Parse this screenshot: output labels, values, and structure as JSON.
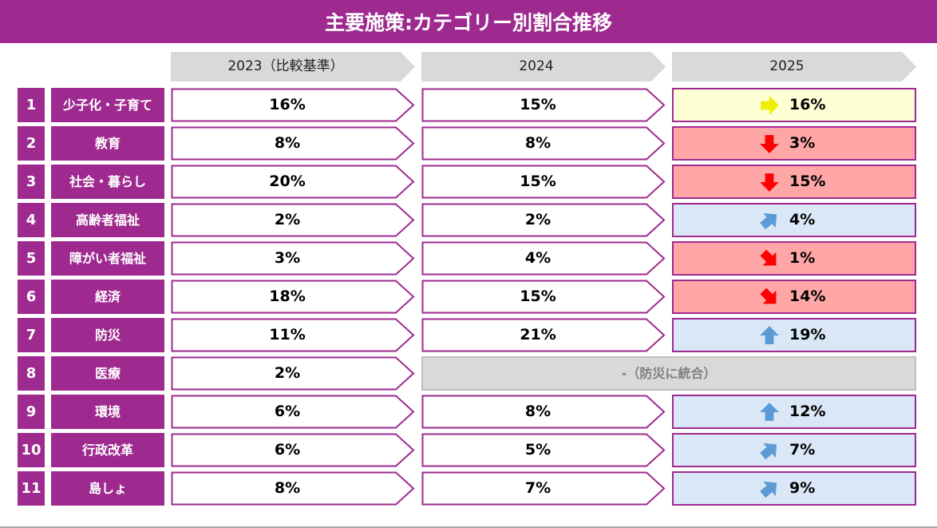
{
  "title": "主要施策:カテゴリー別割合推移",
  "headers": [
    "2023（比較基準）",
    "2024",
    "2025"
  ],
  "colors": {
    "brand": "#9e2a8f",
    "up_bg": "#dae7f6",
    "down_bg": "#ffa7a7",
    "flat_bg": "#ffffd5",
    "up_arrow": "#5b9bd5",
    "down_arrow": "#ff0000",
    "flat_arrow": "#eeee00"
  },
  "rows": [
    {
      "no": "1",
      "category": "少子化・子育て",
      "y2023": "16%",
      "y2024": "15%",
      "y2025": "16%",
      "trend": "flat"
    },
    {
      "no": "2",
      "category": "教育",
      "y2023": "8%",
      "y2024": "8%",
      "y2025": "3%",
      "trend": "down"
    },
    {
      "no": "3",
      "category": "社会・暮らし",
      "y2023": "20%",
      "y2024": "15%",
      "y2025": "15%",
      "trend": "down"
    },
    {
      "no": "4",
      "category": "高齢者福祉",
      "y2023": "2%",
      "y2024": "2%",
      "y2025": "4%",
      "trend": "up-right"
    },
    {
      "no": "5",
      "category": "障がい者福祉",
      "y2023": "3%",
      "y2024": "4%",
      "y2025": "1%",
      "trend": "down-right"
    },
    {
      "no": "6",
      "category": "経済",
      "y2023": "18%",
      "y2024": "15%",
      "y2025": "14%",
      "trend": "down-right"
    },
    {
      "no": "7",
      "category": "防災",
      "y2023": "11%",
      "y2024": "21%",
      "y2025": "19%",
      "trend": "up"
    },
    {
      "no": "8",
      "category": "医療",
      "y2023": "2%",
      "merged": "-（防災に統合）"
    },
    {
      "no": "9",
      "category": "環境",
      "y2023": "6%",
      "y2024": "8%",
      "y2025": "12%",
      "trend": "up"
    },
    {
      "no": "10",
      "category": "行政改革",
      "y2023": "6%",
      "y2024": "5%",
      "y2025": "7%",
      "trend": "up-right"
    },
    {
      "no": "11",
      "category": "島しょ",
      "y2023": "8%",
      "y2024": "7%",
      "y2025": "9%",
      "trend": "up-right"
    }
  ]
}
